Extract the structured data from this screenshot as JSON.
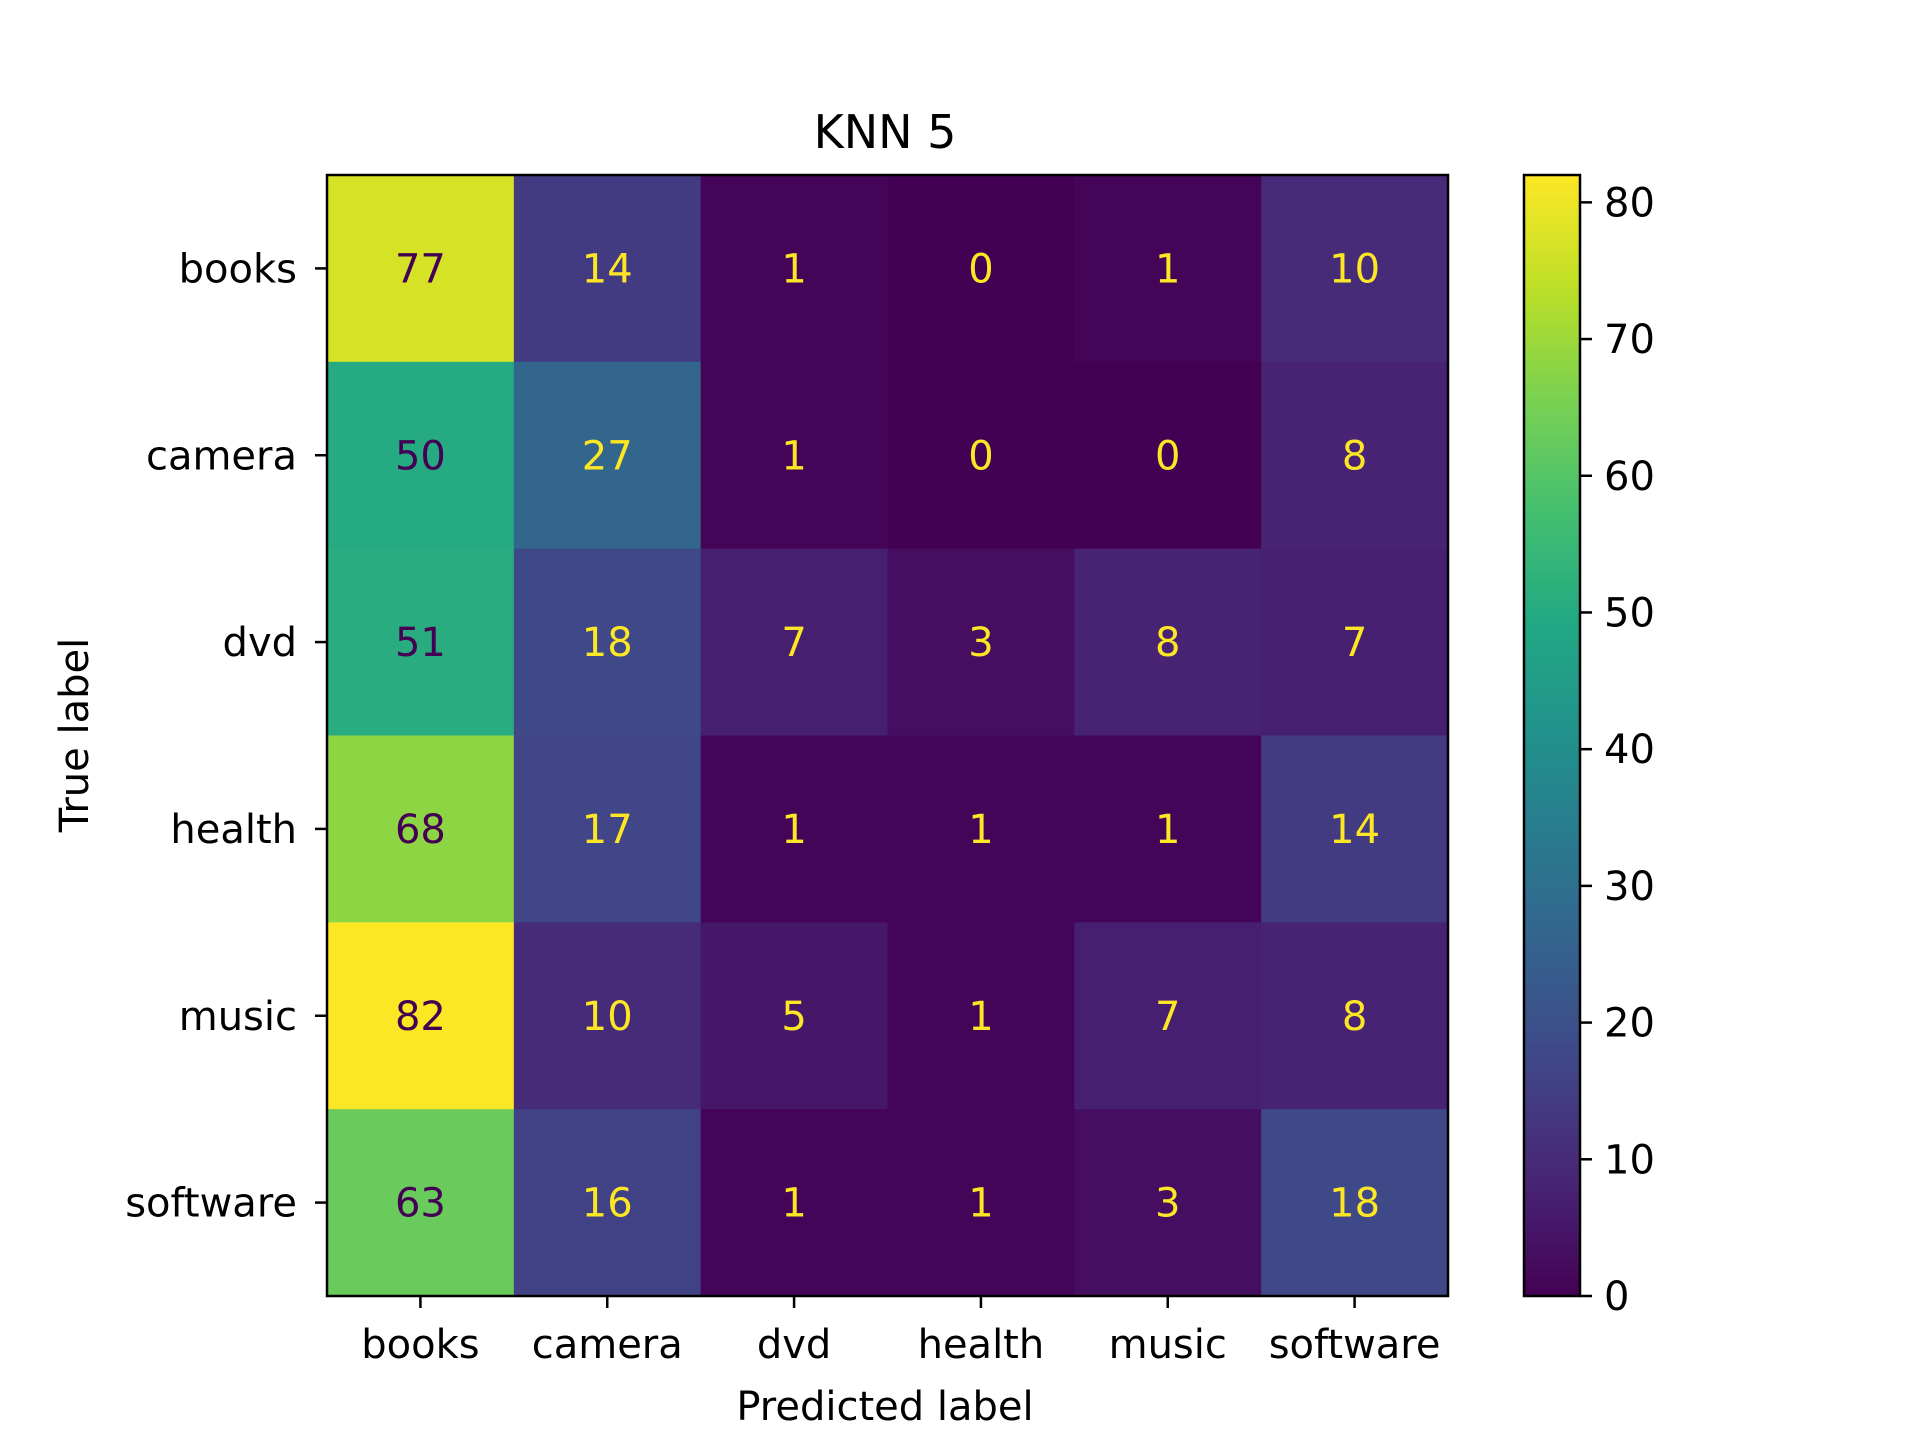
{
  "chart_data": {
    "type": "heatmap",
    "title": "KNN 5",
    "xlabel": "Predicted label",
    "ylabel": "True label",
    "x_categories": [
      "books",
      "camera",
      "dvd",
      "health",
      "music",
      "software"
    ],
    "y_categories": [
      "books",
      "camera",
      "dvd",
      "health",
      "music",
      "software"
    ],
    "values": [
      [
        77,
        14,
        1,
        0,
        1,
        10
      ],
      [
        50,
        27,
        1,
        0,
        0,
        8
      ],
      [
        51,
        18,
        7,
        3,
        8,
        7
      ],
      [
        68,
        17,
        1,
        1,
        1,
        14
      ],
      [
        82,
        10,
        5,
        1,
        7,
        8
      ],
      [
        63,
        16,
        1,
        1,
        3,
        18
      ]
    ],
    "colormap": "viridis",
    "value_range": [
      0,
      82
    ],
    "colorbar_ticks": [
      0,
      10,
      20,
      30,
      40,
      50,
      60,
      70,
      80
    ],
    "cell_text_colors": {
      "on_dark": "#fde725",
      "on_light": "#440154"
    },
    "grid": false,
    "colorbar_position": "right"
  }
}
